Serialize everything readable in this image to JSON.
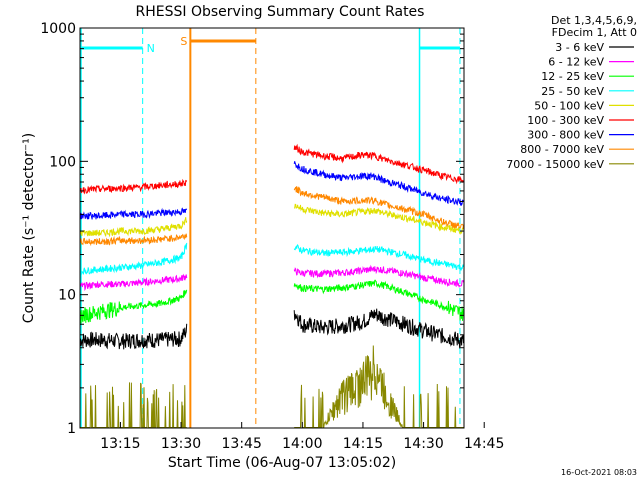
{
  "chart_data": {
    "type": "line",
    "title": "RHESSI Observing Summary Count Rates",
    "xlabel": "Start Time (06-Aug-07 13:05:02)",
    "ylabel": "Count Rate (s⁻¹ detector⁻¹)",
    "yscale": "log",
    "ylim": [
      1,
      1000
    ],
    "xlim_minutes": [
      5,
      100
    ],
    "x_ticks": [
      {
        "at": 15,
        "label": "13:15"
      },
      {
        "at": 30,
        "label": "13:30"
      },
      {
        "at": 45,
        "label": "13:45"
      },
      {
        "at": 60,
        "label": "14:00"
      },
      {
        "at": 75,
        "label": "14:15"
      },
      {
        "at": 90,
        "label": "14:30"
      },
      {
        "at": 105,
        "label": "14:45"
      }
    ],
    "y_ticks": [
      {
        "at": 1,
        "label": "1"
      },
      {
        "at": 10,
        "label": "10"
      },
      {
        "at": 100,
        "label": "100"
      },
      {
        "at": 1000,
        "label": "1000"
      }
    ],
    "legend": {
      "placement": "right",
      "header": [
        "Det 1,3,4,5,6,9,",
        "FDecim 1, Att 0"
      ]
    },
    "series": [
      {
        "name": "3 - 6 keV",
        "color": "#000000",
        "x": [
          5,
          10,
          15,
          20,
          25,
          30,
          31.5,
          58,
          60,
          65,
          70,
          75,
          78,
          80,
          85,
          90,
          95,
          100
        ],
        "y": [
          4.6,
          4.6,
          4.5,
          4.6,
          4.6,
          4.7,
          5.5,
          7.5,
          6.0,
          5.7,
          5.9,
          6.3,
          7.2,
          6.8,
          6.1,
          5.4,
          4.9,
          4.5
        ]
      },
      {
        "name": "6 - 12 keV",
        "color": "#ff00ff",
        "x": [
          5,
          10,
          15,
          20,
          25,
          30,
          31.5,
          58,
          60,
          65,
          70,
          75,
          78,
          80,
          85,
          90,
          95,
          100
        ],
        "y": [
          11.5,
          12,
          12,
          12.3,
          12.8,
          13.2,
          14,
          15,
          14.5,
          14.4,
          14.6,
          15.2,
          15.6,
          15.4,
          14.5,
          13.4,
          12.6,
          12
        ]
      },
      {
        "name": "12 - 25 keV",
        "color": "#00ff00",
        "x": [
          5,
          10,
          15,
          20,
          25,
          30,
          31.5,
          58,
          60,
          65,
          70,
          75,
          78,
          80,
          85,
          90,
          95,
          100
        ],
        "y": [
          7,
          7.5,
          8,
          8.3,
          8.6,
          9.5,
          11,
          12,
          11.2,
          11,
          11.3,
          11.8,
          12.2,
          11.8,
          10.5,
          9.2,
          8.2,
          7.2
        ]
      },
      {
        "name": "25 - 50 keV",
        "color": "#00ffff",
        "x": [
          5,
          10,
          15,
          20,
          25,
          30,
          31.5,
          58,
          60,
          65,
          70,
          75,
          78,
          80,
          85,
          90,
          95,
          100
        ],
        "y": [
          15,
          15.5,
          16,
          16.5,
          17.5,
          19,
          24,
          23,
          21.5,
          20.5,
          20.8,
          21.5,
          22,
          21.5,
          20,
          18.2,
          17,
          16
        ]
      },
      {
        "name": "50 - 100 keV",
        "color": "#e0e000",
        "x": [
          5,
          10,
          15,
          20,
          25,
          30,
          31.5,
          58,
          60,
          65,
          70,
          75,
          78,
          80,
          85,
          90,
          95,
          100
        ],
        "y": [
          29,
          29,
          30,
          30,
          31,
          33,
          37,
          47,
          44,
          41,
          40,
          42,
          43,
          41,
          38,
          35,
          32,
          30
        ]
      },
      {
        "name": "100 - 300 keV",
        "color": "#ff0000",
        "x": [
          5,
          10,
          15,
          20,
          25,
          30,
          31.5,
          58,
          60,
          65,
          70,
          75,
          78,
          80,
          85,
          90,
          95,
          100
        ],
        "y": [
          61,
          62,
          63,
          64,
          66,
          68,
          70,
          128,
          118,
          110,
          105,
          112,
          110,
          104,
          95,
          86,
          77,
          72
        ]
      },
      {
        "name": "300 - 800 keV",
        "color": "#0000ff",
        "x": [
          5,
          10,
          15,
          20,
          25,
          30,
          31.5,
          58,
          60,
          65,
          70,
          75,
          78,
          80,
          85,
          90,
          95,
          100
        ],
        "y": [
          39,
          39,
          40,
          40,
          41,
          42,
          42,
          97,
          88,
          80,
          75,
          78,
          77,
          72,
          65,
          58,
          52,
          49
        ]
      },
      {
        "name": "800 - 7000 keV",
        "color": "#ff8800",
        "x": [
          5,
          10,
          15,
          20,
          25,
          30,
          31.5,
          58,
          60,
          65,
          70,
          75,
          78,
          80,
          85,
          90,
          95,
          100
        ],
        "y": [
          25,
          25,
          25.5,
          25.5,
          26,
          27,
          28,
          63,
          58,
          54,
          50,
          51,
          51,
          48,
          44,
          40,
          35,
          32
        ]
      },
      {
        "name": "7000 - 15000 keV",
        "color": "#888800",
        "x": [
          5,
          10,
          15,
          20,
          25,
          30,
          31.5,
          58,
          60,
          65,
          70,
          75,
          78,
          80,
          85,
          90,
          95,
          100
        ],
        "y": [
          1,
          1,
          1,
          1,
          1,
          1,
          1,
          1,
          1,
          1,
          1.8,
          2.3,
          3.0,
          2.0,
          1,
          1,
          1,
          1
        ]
      }
    ],
    "annotations": [
      {
        "type": "band",
        "label": "N",
        "color": "#00ffff",
        "ranges_minutes": [
          [
            5,
            20.5
          ],
          [
            89,
            99
          ]
        ]
      },
      {
        "type": "band",
        "label": "S",
        "color": "#ff8800",
        "ranges_minutes": [
          [
            32.3,
            48.5
          ]
        ]
      }
    ],
    "timestamp": "16-Oct-2021 08:03"
  }
}
